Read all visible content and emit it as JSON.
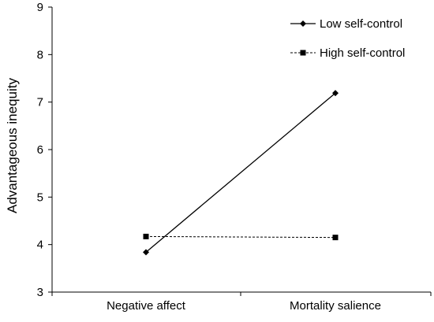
{
  "chart_data": {
    "type": "line",
    "categories": [
      "Negative affect",
      "Mortality salience"
    ],
    "series": [
      {
        "name": "Low self-control",
        "values": [
          3.84,
          7.19
        ],
        "line_style": "solid",
        "marker": "diamond",
        "color": "#000000"
      },
      {
        "name": "High self-control",
        "values": [
          4.17,
          4.15
        ],
        "line_style": "dashed",
        "marker": "square",
        "color": "#000000"
      }
    ],
    "title": "",
    "xlabel": "",
    "ylabel": "Advantageous inequity",
    "ylim": [
      3,
      9
    ],
    "yticks": [
      "3",
      "4",
      "5",
      "6",
      "7",
      "8",
      "9"
    ],
    "grid": false,
    "legend_position": "top-right"
  }
}
